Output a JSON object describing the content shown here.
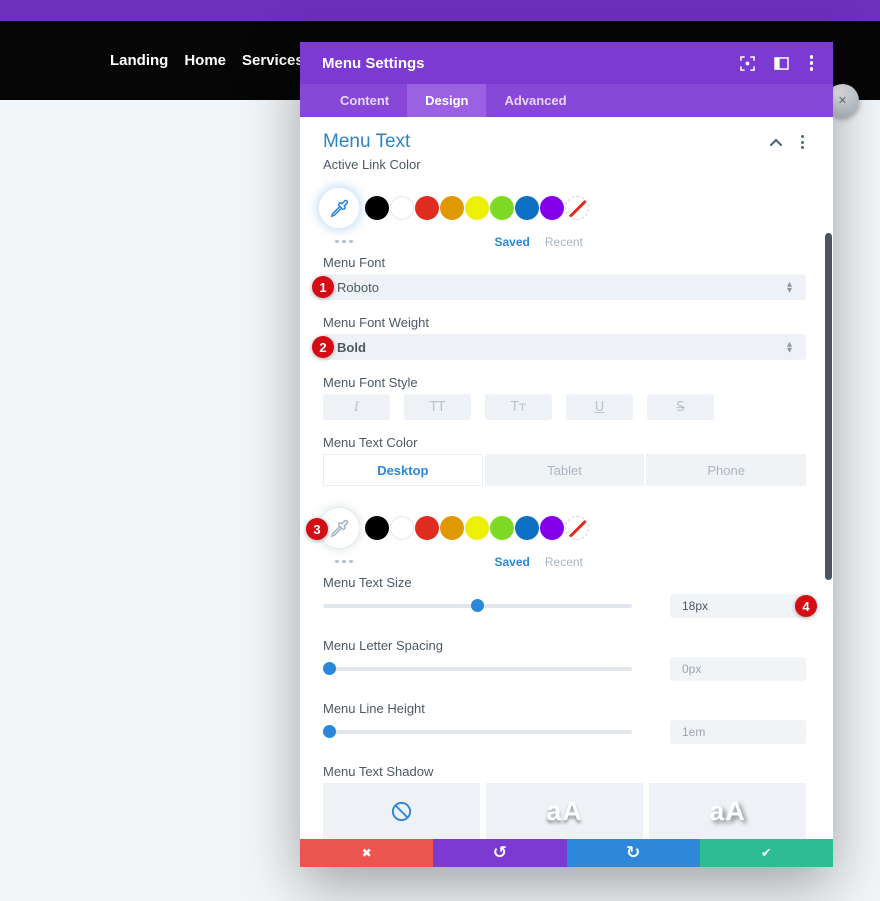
{
  "navbar": {
    "links": [
      "Landing",
      "Home",
      "Services"
    ]
  },
  "modal": {
    "title": "Menu Settings",
    "tabs": {
      "content": "Content",
      "design": "Design",
      "advanced": "Advanced"
    },
    "section_title": "Menu Text",
    "palette": [
      "#000000",
      "#FFFFFF",
      "#E02B20",
      "#E09900",
      "#EDF000",
      "#7CDA24",
      "#0C71C3",
      "#8300E9"
    ],
    "active_link_color": {
      "label": "Active Link Color",
      "saved": "Saved",
      "recent": "Recent"
    },
    "menu_font": {
      "label": "Menu Font",
      "value": "Roboto",
      "badge": "1"
    },
    "menu_font_weight": {
      "label": "Menu Font Weight",
      "value": "Bold",
      "badge": "2"
    },
    "menu_font_style": {
      "label": "Menu Font Style",
      "options": [
        {
          "glyph": "I"
        },
        {
          "glyph": "TT"
        },
        {
          "glyph": "Tᴛ"
        },
        {
          "glyph": "U"
        },
        {
          "glyph": "S"
        }
      ]
    },
    "menu_text_color": {
      "label": "Menu Text Color",
      "devices": [
        "Desktop",
        "Tablet",
        "Phone"
      ],
      "active_device": "Desktop",
      "badge": "3",
      "saved": "Saved",
      "recent": "Recent"
    },
    "menu_text_size": {
      "label": "Menu Text Size",
      "value": "18px",
      "badge": "4",
      "slider_percent": 50
    },
    "menu_letter_spacing": {
      "label": "Menu Letter Spacing",
      "value": "0px",
      "slider_percent": 2
    },
    "menu_line_height": {
      "label": "Menu Line Height",
      "value": "1em",
      "slider_percent": 2
    },
    "menu_text_shadow": {
      "label": "Menu Text Shadow",
      "sample": "aA"
    }
  },
  "footer": {
    "cancel_icon": "✖",
    "undo_icon": "↺",
    "redo_icon": "↻",
    "save_icon": "✔",
    "colors": {
      "cancel": "#ea564f",
      "undo": "#7d3ad3",
      "redo": "#2f87da",
      "save": "#2dbd93"
    }
  }
}
